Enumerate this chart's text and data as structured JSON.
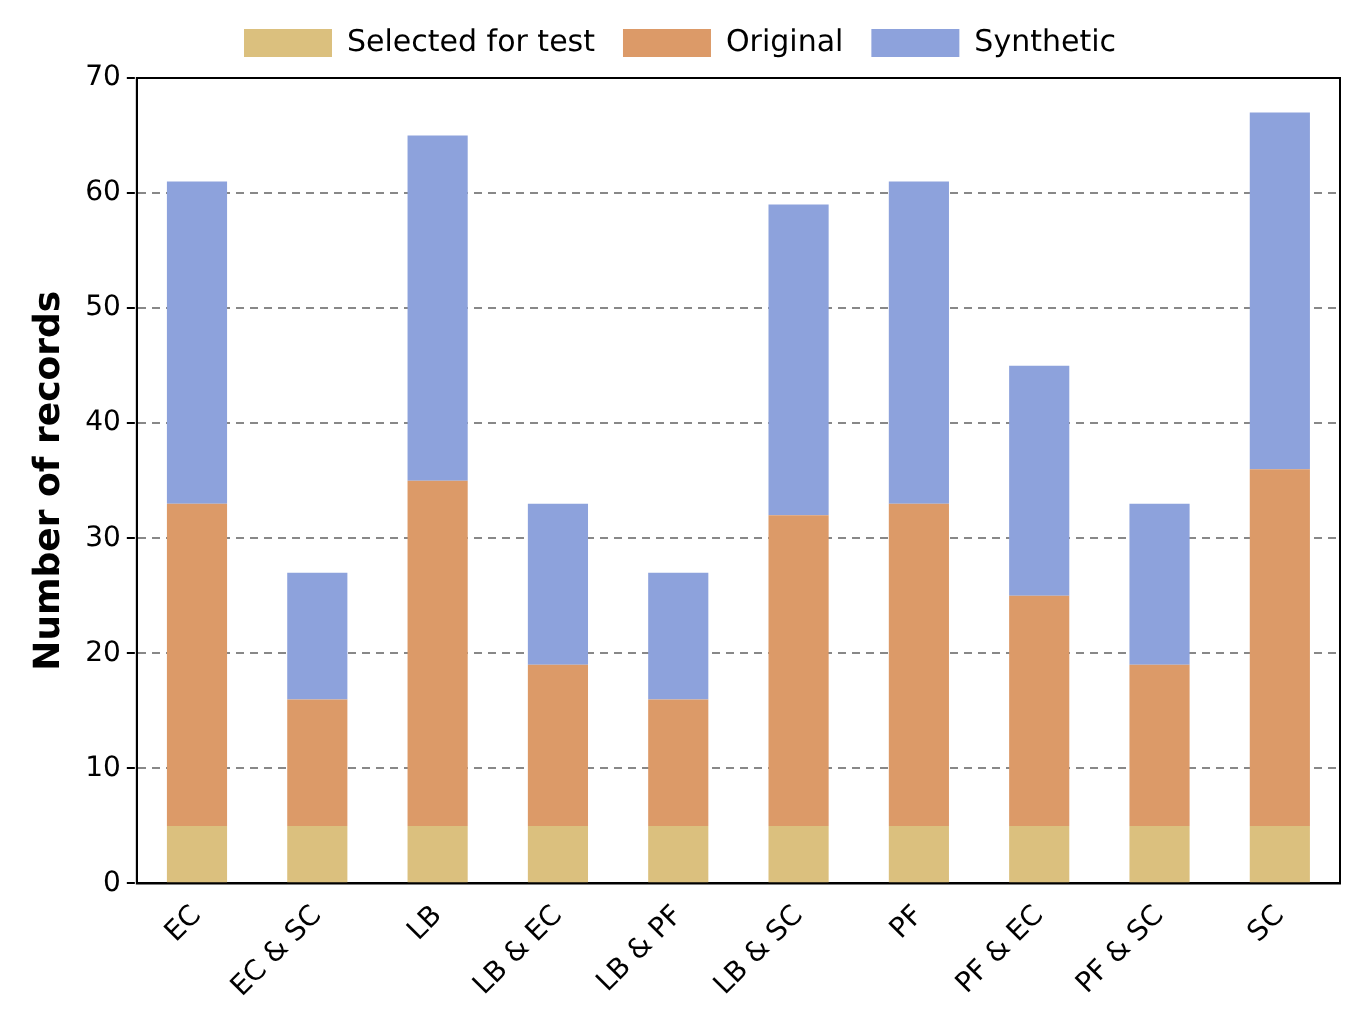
{
  "chart_data": {
    "type": "bar",
    "ylabel": "Number of records",
    "categories": [
      "EC",
      "EC & SC",
      "LB",
      "LB & EC",
      "LB & PF",
      "LB & SC",
      "PF",
      "PF & EC",
      "PF & SC",
      "SC"
    ],
    "series": [
      {
        "name": "Selected for test",
        "color": "#dbc07e",
        "values": [
          5,
          5,
          5,
          5,
          5,
          5,
          5,
          5,
          5,
          5
        ]
      },
      {
        "name": "Original",
        "color": "#dc9a68",
        "values": [
          28,
          11,
          30,
          14,
          11,
          27,
          28,
          20,
          14,
          31
        ]
      },
      {
        "name": "Synthetic",
        "color": "#8da2dc",
        "values": [
          28,
          11,
          30,
          14,
          11,
          27,
          28,
          20,
          14,
          31
        ]
      }
    ],
    "stacked": true,
    "ylim": [
      0,
      70
    ],
    "yticks": [
      0,
      10,
      20,
      30,
      40,
      50,
      60,
      70
    ],
    "grid": "y",
    "legend": "top"
  }
}
